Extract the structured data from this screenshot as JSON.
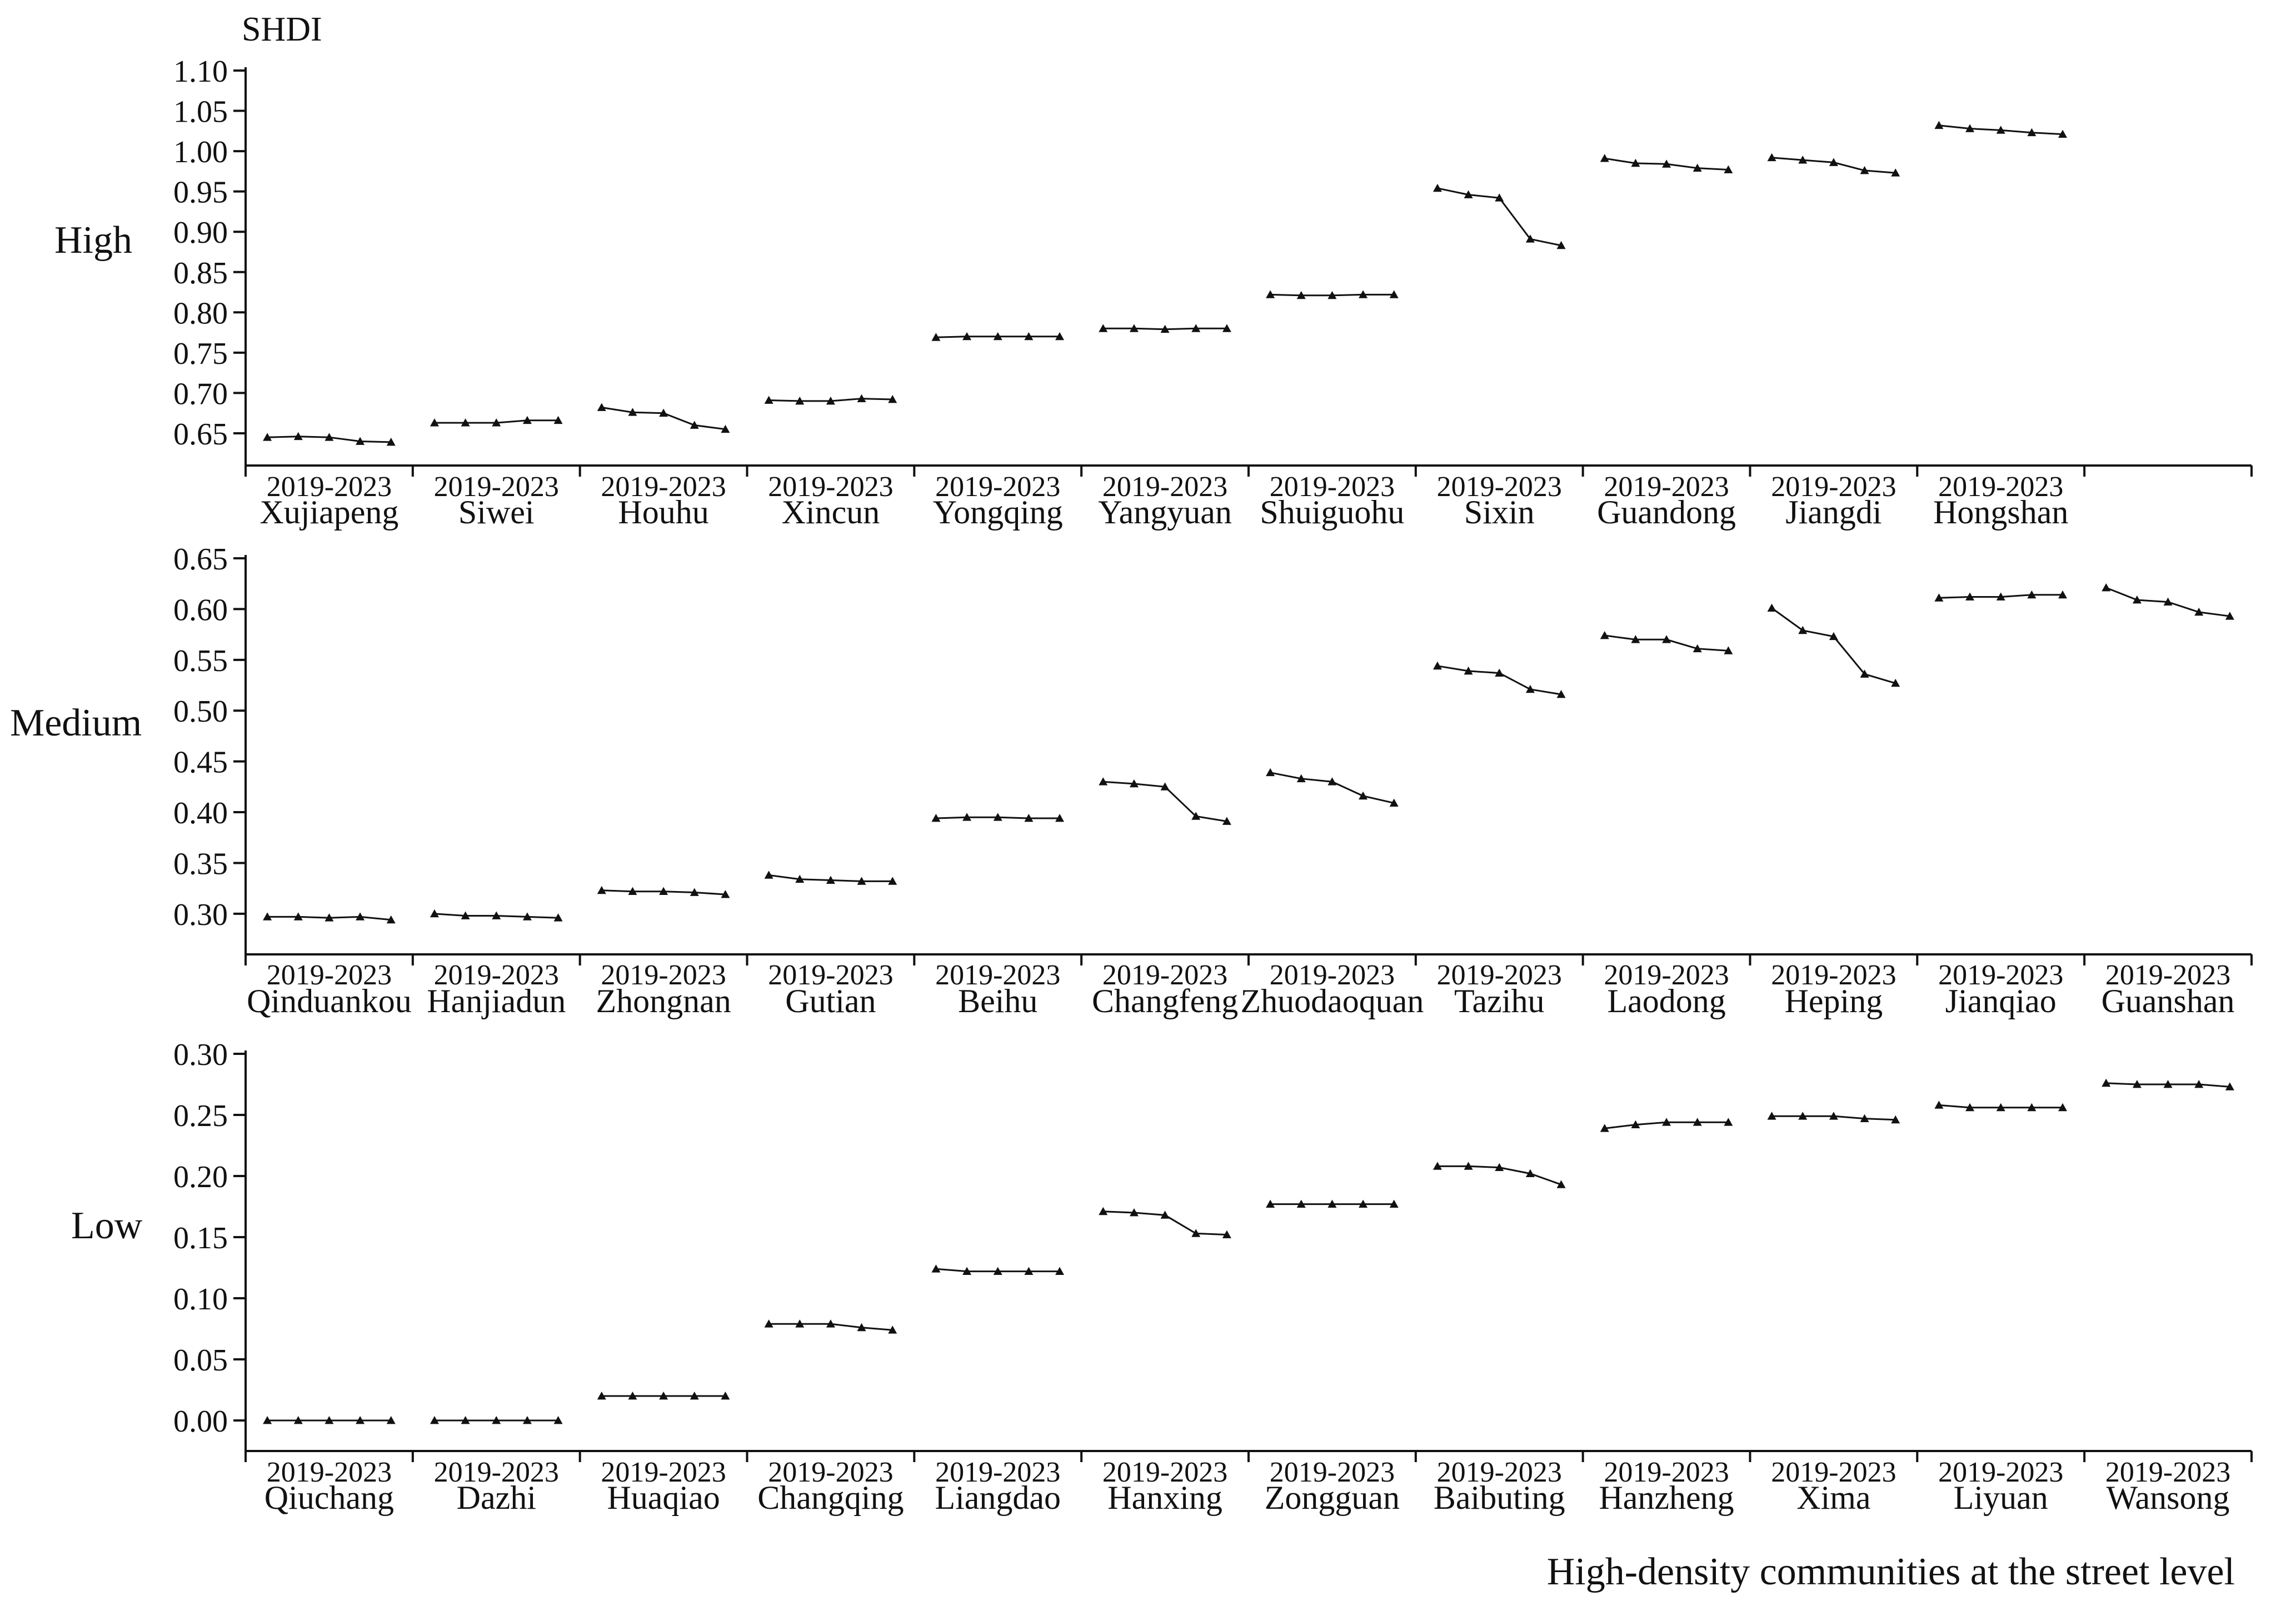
{
  "y_unit_label": "SHDI",
  "x_axis_title": "High-density communities at the street level",
  "chart_data": [
    {
      "type": "line",
      "panel": "High",
      "period_label": "2019-2023",
      "ylim": [
        0.61,
        1.1
      ],
      "yticks": [
        "0.65",
        "0.70",
        "0.75",
        "0.80",
        "0.85",
        "0.90",
        "0.95",
        "1.00",
        "1.05",
        "1.10"
      ],
      "slots": 12,
      "communities": [
        {
          "name": "Xujiapeng",
          "values": [
            0.645,
            0.646,
            0.645,
            0.64,
            0.639
          ]
        },
        {
          "name": "Siwei",
          "values": [
            0.663,
            0.663,
            0.663,
            0.666,
            0.666
          ]
        },
        {
          "name": "Houhu",
          "values": [
            0.682,
            0.676,
            0.675,
            0.66,
            0.655
          ]
        },
        {
          "name": "Xincun",
          "values": [
            0.691,
            0.69,
            0.69,
            0.693,
            0.692
          ]
        },
        {
          "name": "Yongqing",
          "values": [
            0.769,
            0.77,
            0.77,
            0.77,
            0.77
          ]
        },
        {
          "name": "Yangyuan",
          "values": [
            0.78,
            0.78,
            0.779,
            0.78,
            0.78
          ]
        },
        {
          "name": "Shuiguohu",
          "values": [
            0.822,
            0.821,
            0.821,
            0.822,
            0.822
          ]
        },
        {
          "name": "Sixin",
          "values": [
            0.954,
            0.946,
            0.942,
            0.891,
            0.883
          ]
        },
        {
          "name": "Guandong",
          "values": [
            0.991,
            0.985,
            0.984,
            0.979,
            0.977
          ]
        },
        {
          "name": "Jiangdi",
          "values": [
            0.992,
            0.989,
            0.986,
            0.976,
            0.973
          ]
        },
        {
          "name": "Hongshan",
          "values": [
            1.032,
            1.028,
            1.026,
            1.023,
            1.021
          ]
        }
      ]
    },
    {
      "type": "line",
      "panel": "Medium",
      "period_label": "2019-2023",
      "ylim": [
        0.26,
        0.65
      ],
      "yticks": [
        "0.30",
        "0.35",
        "0.40",
        "0.45",
        "0.50",
        "0.55",
        "0.60",
        "0.65"
      ],
      "slots": 12,
      "communities": [
        {
          "name": "Qinduankou",
          "values": [
            0.297,
            0.297,
            0.296,
            0.297,
            0.294
          ]
        },
        {
          "name": "Hanjiadun",
          "values": [
            0.3,
            0.298,
            0.298,
            0.297,
            0.296
          ]
        },
        {
          "name": "Zhongnan",
          "values": [
            0.323,
            0.322,
            0.322,
            0.321,
            0.319
          ]
        },
        {
          "name": "Gutian",
          "values": [
            0.338,
            0.334,
            0.333,
            0.332,
            0.332
          ]
        },
        {
          "name": "Beihu",
          "values": [
            0.394,
            0.395,
            0.395,
            0.394,
            0.394
          ]
        },
        {
          "name": "Changfeng",
          "values": [
            0.43,
            0.428,
            0.425,
            0.396,
            0.391
          ]
        },
        {
          "name": "Zhuodaoquan",
          "values": [
            0.439,
            0.433,
            0.43,
            0.416,
            0.409
          ]
        },
        {
          "name": "Tazihu",
          "values": [
            0.544,
            0.539,
            0.537,
            0.521,
            0.516
          ]
        },
        {
          "name": "Laodong",
          "values": [
            0.574,
            0.57,
            0.57,
            0.561,
            0.559
          ]
        },
        {
          "name": "Heping",
          "values": [
            0.601,
            0.579,
            0.573,
            0.536,
            0.527
          ]
        },
        {
          "name": "Jianqiao",
          "values": [
            0.611,
            0.612,
            0.612,
            0.614,
            0.614
          ]
        },
        {
          "name": "Guanshan",
          "values": [
            0.621,
            0.609,
            0.607,
            0.597,
            0.593
          ]
        }
      ]
    },
    {
      "type": "line",
      "panel": "Low",
      "period_label": "2019-2023",
      "ylim": [
        -0.025,
        0.3
      ],
      "yticks": [
        "0.00",
        "0.05",
        "0.10",
        "0.15",
        "0.20",
        "0.25",
        "0.30"
      ],
      "slots": 12,
      "communities": [
        {
          "name": "Qiuchang",
          "values": [
            0.0,
            0.0,
            0.0,
            0.0,
            0.0
          ]
        },
        {
          "name": "Dazhi",
          "values": [
            0.0,
            0.0,
            0.0,
            0.0,
            0.0
          ]
        },
        {
          "name": "Huaqiao",
          "values": [
            0.02,
            0.02,
            0.02,
            0.02,
            0.02
          ]
        },
        {
          "name": "Changqing",
          "values": [
            0.079,
            0.079,
            0.079,
            0.076,
            0.074
          ]
        },
        {
          "name": "Liangdao",
          "values": [
            0.124,
            0.122,
            0.122,
            0.122,
            0.122
          ]
        },
        {
          "name": "Hanxing",
          "values": [
            0.171,
            0.17,
            0.168,
            0.153,
            0.152
          ]
        },
        {
          "name": "Zongguan",
          "values": [
            0.177,
            0.177,
            0.177,
            0.177,
            0.177
          ]
        },
        {
          "name": "Baibuting",
          "values": [
            0.208,
            0.208,
            0.207,
            0.202,
            0.193
          ]
        },
        {
          "name": "Hanzheng",
          "values": [
            0.239,
            0.242,
            0.244,
            0.244,
            0.244
          ]
        },
        {
          "name": "Xima",
          "values": [
            0.249,
            0.249,
            0.249,
            0.247,
            0.246
          ]
        },
        {
          "name": "Liyuan",
          "values": [
            0.258,
            0.256,
            0.256,
            0.256,
            0.256
          ]
        },
        {
          "name": "Wansong",
          "values": [
            0.276,
            0.275,
            0.275,
            0.275,
            0.273
          ]
        }
      ]
    }
  ]
}
